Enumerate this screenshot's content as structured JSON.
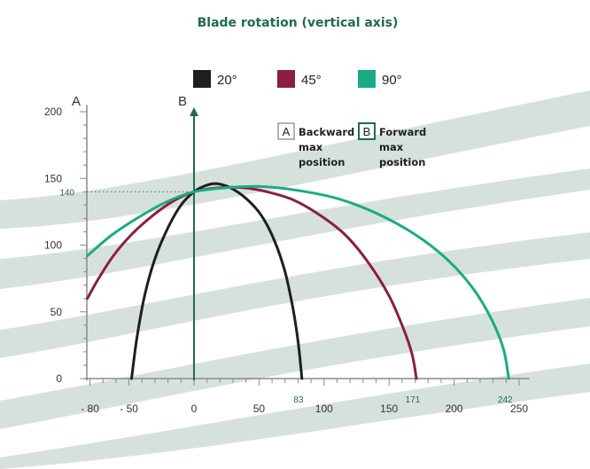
{
  "chart_data": {
    "type": "line",
    "title": "Blade rotation (vertical axis)",
    "axis_names": {
      "a": "A",
      "b": "B"
    },
    "x_ticks": [
      {
        "value": -80,
        "label": "- 80"
      },
      {
        "value": -50,
        "label": "- 50"
      },
      {
        "value": 0,
        "label": "0"
      },
      {
        "value": 50,
        "label": "50"
      },
      {
        "value": 100,
        "label": "100"
      },
      {
        "value": 150,
        "label": "150"
      },
      {
        "value": 200,
        "label": "200"
      },
      {
        "value": 250,
        "label": "250"
      }
    ],
    "y_ticks": [
      {
        "value": 0,
        "label": "0"
      },
      {
        "value": 50,
        "label": "50"
      },
      {
        "value": 100,
        "label": "100"
      },
      {
        "value": 150,
        "label": "150"
      },
      {
        "value": 200,
        "label": "200"
      }
    ],
    "xlim": [
      -85,
      262
    ],
    "ylim": [
      0,
      205
    ],
    "y_mark": {
      "value": 140,
      "label": "140"
    },
    "x_marks": [
      {
        "value": 83,
        "label": "83"
      },
      {
        "value": 171,
        "label": "171"
      },
      {
        "value": 242,
        "label": "242"
      }
    ],
    "annotations": [
      {
        "letter": "A",
        "lines": [
          "Backward",
          "max",
          "position"
        ]
      },
      {
        "letter": "B",
        "lines": [
          "Forward",
          "max",
          "position"
        ]
      }
    ],
    "series": [
      {
        "name": "20°",
        "color": "#1e1e1e",
        "points": [
          [
            -48,
            0
          ],
          [
            -44,
            30
          ],
          [
            -38,
            62
          ],
          [
            -30,
            90
          ],
          [
            -20,
            113
          ],
          [
            -10,
            130
          ],
          [
            0,
            140
          ],
          [
            10,
            145
          ],
          [
            18,
            146
          ],
          [
            28,
            143
          ],
          [
            40,
            135
          ],
          [
            52,
            122
          ],
          [
            62,
            103
          ],
          [
            70,
            80
          ],
          [
            76,
            53
          ],
          [
            80,
            28
          ],
          [
            83,
            0
          ]
        ]
      },
      {
        "name": "45°",
        "color": "#8c1d45",
        "points": [
          [
            -82,
            60
          ],
          [
            -74,
            74
          ],
          [
            -62,
            92
          ],
          [
            -48,
            108
          ],
          [
            -32,
            122
          ],
          [
            -16,
            133
          ],
          [
            0,
            140
          ],
          [
            20,
            143
          ],
          [
            38,
            143
          ],
          [
            56,
            140
          ],
          [
            76,
            134
          ],
          [
            96,
            123
          ],
          [
            116,
            108
          ],
          [
            134,
            87
          ],
          [
            150,
            62
          ],
          [
            162,
            35
          ],
          [
            168,
            17
          ],
          [
            171,
            0
          ]
        ]
      },
      {
        "name": "90°",
        "color": "#1aab85",
        "points": [
          [
            -82,
            92
          ],
          [
            -64,
            107
          ],
          [
            -44,
            120
          ],
          [
            -22,
            132
          ],
          [
            0,
            140
          ],
          [
            25,
            143
          ],
          [
            50,
            144
          ],
          [
            80,
            141
          ],
          [
            110,
            135
          ],
          [
            140,
            124
          ],
          [
            170,
            108
          ],
          [
            195,
            89
          ],
          [
            215,
            67
          ],
          [
            229,
            44
          ],
          [
            238,
            22
          ],
          [
            242,
            0
          ]
        ]
      }
    ]
  }
}
